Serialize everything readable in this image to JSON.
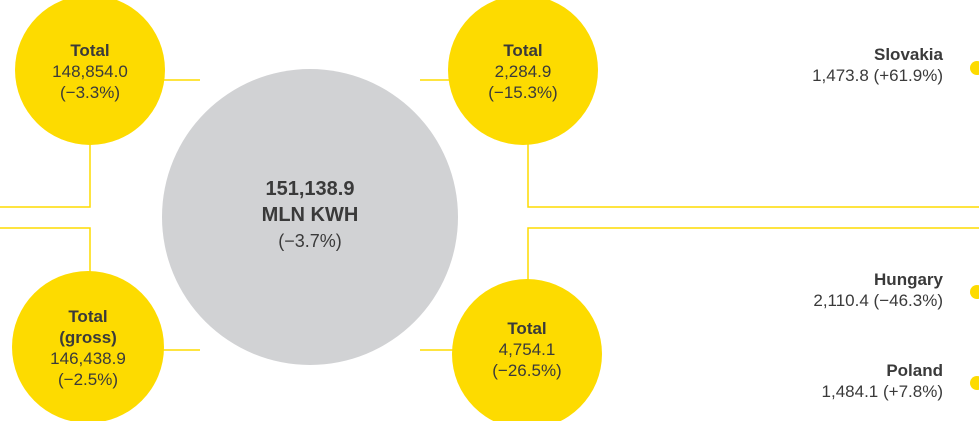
{
  "center": {
    "lines": [
      "151,138.9",
      "MLN KWH",
      "(−3.7%)"
    ]
  },
  "nodes": [
    {
      "lines": [
        "Total",
        "148,854.0",
        "(−3.3%)"
      ]
    },
    {
      "lines": [
        "Total",
        "2,284.9",
        "(−15.3%)"
      ]
    },
    {
      "lines": [
        "Total",
        "(gross)",
        "146,438.9",
        "(−2.5%)"
      ]
    },
    {
      "lines": [
        "Total",
        "4,754.1",
        "(−26.5%)"
      ]
    }
  ],
  "countries": [
    {
      "name": "Slovakia",
      "value": "1,473.8 (+61.9%)"
    },
    {
      "name": "Hungary",
      "value": "2,110.4 (−46.3%)"
    },
    {
      "name": "Poland",
      "value": "1,484.1 (+7.8%)"
    }
  ]
}
